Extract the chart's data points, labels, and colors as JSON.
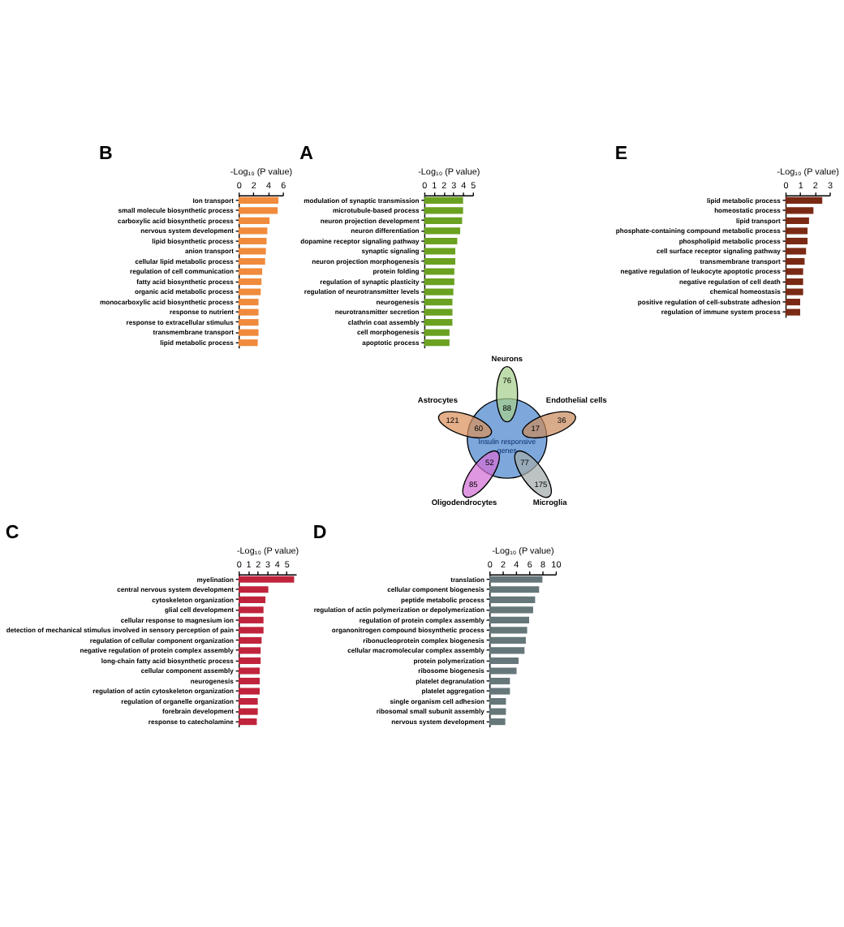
{
  "chart_data": [
    {
      "type": "bar",
      "orientation": "horizontal",
      "title": "A",
      "xlabel": "-Log₁₀ (P value)",
      "color": "#6aa121",
      "xlim": [
        0,
        5
      ],
      "xticks": [
        0,
        1,
        2,
        3,
        4,
        5
      ],
      "categories": [
        "modulation of synaptic transmission",
        "microtubule-based process",
        "neuron projection development",
        "neuron differentiation",
        "dopamine receptor signaling pathway",
        "synaptic signaling",
        "neuron projection morphogenesis",
        "protein folding",
        "regulation of synaptic plasticity",
        "regulation of neurotransmitter levels",
        "neurogenesis",
        "neurotransmitter secretion",
        "clathrin coat assembly",
        "cell morphogenesis",
        "apoptotic process"
      ],
      "values": [
        4.0,
        4.0,
        3.9,
        3.7,
        3.4,
        3.2,
        3.2,
        3.1,
        3.1,
        3.0,
        2.9,
        2.9,
        2.9,
        2.6,
        2.6
      ]
    },
    {
      "type": "bar",
      "orientation": "horizontal",
      "title": "B",
      "xlabel": "-Log₁₀ (P value)",
      "color": "#f08a3c",
      "xlim": [
        0,
        6
      ],
      "xticks": [
        0,
        2,
        4,
        6
      ],
      "categories": [
        "Ion transport",
        "small molecule biosynthetic process",
        "carboxylic acid biosynthetic process",
        "nervous system development",
        "lipid biosynthetic process",
        "anion transport",
        "cellular lipid metabolic process",
        "regulation of cell communication",
        "fatty acid biosynthetic process",
        "organic acid metabolic process",
        "monocarboxylic acid biosynthetic process",
        "response to nutrient",
        "response to extracellular stimulus",
        "transmembrane transport",
        "lipid metabolic process"
      ],
      "values": [
        5.4,
        5.3,
        4.2,
        3.9,
        3.8,
        3.7,
        3.6,
        3.2,
        3.1,
        3.0,
        2.7,
        2.7,
        2.7,
        2.7,
        2.6
      ]
    },
    {
      "type": "other",
      "data_labels": true,
      "categories": [
        "Neurons",
        "Astrocytes",
        "Oligodendrocytes",
        "Microglia",
        "Endothelial cells"
      ],
      "annotations": [
        "Insulin responsive genes"
      ],
      "series": [
        {
          "colors": [
            "#a6d08c",
            "#d9905c",
            "#d46fd6",
            "#a3acac",
            "#c98c5e"
          ],
          "values": [
            76,
            121,
            85,
            175,
            36
          ]
        },
        {
          "color": "#7ea8dc",
          "values": [
            88,
            60,
            52,
            77,
            17
          ]
        }
      ]
    },
    {
      "type": "bar",
      "orientation": "horizontal",
      "title": "E",
      "xlabel": "-Log₁₀ (P value)",
      "color": "#7a2a14",
      "xlim": [
        0,
        3
      ],
      "xticks": [
        0,
        1,
        2,
        3
      ],
      "categories": [
        "lipid metabolic process",
        "homeostatic process",
        "lipid transport",
        "phosphate-containing compound metabolic process",
        "phospholipid metabolic process",
        "cell surface receptor signaling pathway",
        "transmembrane transport",
        "negative regulation of leukocyte apoptotic process",
        "negative regulation of cell death",
        "chemical homeostasis",
        "positive regulation of cell-substrate adhesion",
        "regulation of immune system process"
      ],
      "values": [
        2.5,
        1.9,
        1.6,
        1.5,
        1.5,
        1.4,
        1.3,
        1.2,
        1.2,
        1.2,
        1.0,
        1.0
      ]
    },
    {
      "type": "bar",
      "orientation": "horizontal",
      "title": "C",
      "xlabel": "-Log₁₀ (P value)",
      "color": "#c0243c",
      "xlim": [
        0,
        6
      ],
      "xticks": [
        0,
        1,
        2,
        3,
        4,
        5
      ],
      "categories": [
        "myelination",
        "central nervous system development",
        "cytoskeleton organization",
        "glial cell development",
        "cellular response to magnesium ion",
        "detection of mechanical stimulus involved in sensory perception of pain",
        "regulation of cellular component organization",
        "negative regulation of protein complex assembly",
        "long-chain fatty acid biosynthetic process",
        "cellular component assembly",
        "neurogenesis",
        "regulation of actin cytoskeleton organization",
        "regulation of organelle organization",
        "forebrain development",
        "response to catecholamine"
      ],
      "values": [
        5.8,
        3.1,
        2.8,
        2.6,
        2.6,
        2.6,
        2.4,
        2.3,
        2.3,
        2.2,
        2.2,
        2.2,
        2.0,
        2.0,
        1.9
      ]
    },
    {
      "type": "bar",
      "orientation": "horizontal",
      "title": "D",
      "xlabel": "-Log₁₀ (P value)",
      "color": "#66777a",
      "xlim": [
        0,
        10
      ],
      "xticks": [
        0,
        2,
        4,
        6,
        8,
        10
      ],
      "categories": [
        "translation",
        "cellular component biogenesis",
        "peptide metabolic process",
        "regulation of actin polymerization or depolymerization",
        "regulation of protein complex assembly",
        "organonitrogen compound biosynthetic process",
        "ribonucleoprotein complex biogenesis",
        "cellular macromolecular complex assembly",
        "protein polymerization",
        "ribosome biogenesis",
        "platelet degranulation",
        "platelet aggregation",
        "single organism cell adhesion",
        "ribosomal small subunit assembly",
        "nervous system development"
      ],
      "values": [
        8.0,
        7.5,
        6.9,
        6.6,
        6.0,
        5.7,
        5.5,
        5.3,
        4.4,
        4.1,
        3.1,
        3.1,
        2.5,
        2.5,
        2.4
      ]
    }
  ]
}
